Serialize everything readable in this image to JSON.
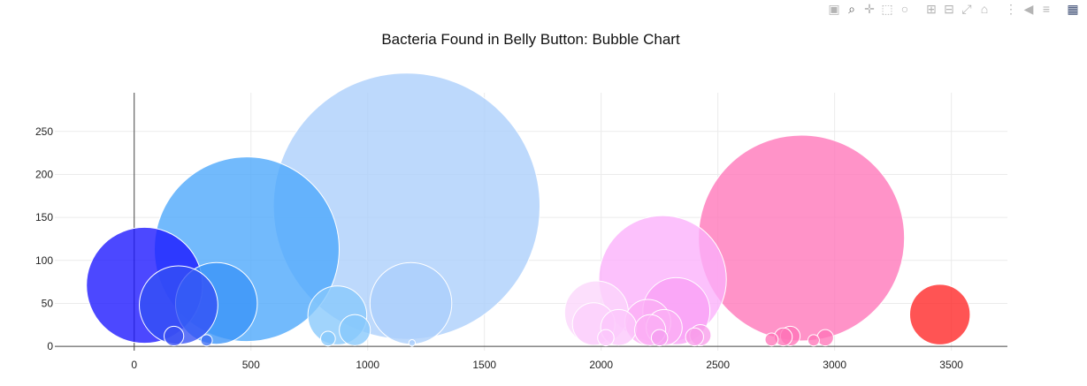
{
  "modebar": {
    "icons": [
      "camera-icon",
      "zoom-icon",
      "pan-icon",
      "box-select-icon",
      "lasso-icon",
      "zoom-in-icon",
      "zoom-out-icon",
      "autoscale-icon",
      "reset-axes-icon",
      "spike-lines-icon",
      "hover-closest-icon",
      "hover-compare-icon",
      "plotly-logo-icon"
    ]
  },
  "chart_data": {
    "type": "scatter",
    "title": "Bacteria Found in Belly Button: Bubble Chart",
    "xlabel": "",
    "ylabel": "",
    "xlim": [
      -340,
      3740
    ],
    "ylim": [
      -5,
      295
    ],
    "xticks": [
      0,
      500,
      1000,
      1500,
      2000,
      2500,
      3000,
      3500
    ],
    "yticks": [
      0,
      50,
      100,
      150,
      200,
      250
    ],
    "grid": true,
    "legend": false,
    "points": [
      {
        "x": 44,
        "y": 71,
        "size": 71,
        "color": "#1a14ff"
      },
      {
        "x": 190,
        "y": 48,
        "size": 48,
        "color": "#3350f5"
      },
      {
        "x": 170,
        "y": 12,
        "size": 12,
        "color": "#3a4ef2"
      },
      {
        "x": 310,
        "y": 7,
        "size": 7,
        "color": "#3a6cf2"
      },
      {
        "x": 352,
        "y": 50,
        "size": 50,
        "color": "#3a93f7"
      },
      {
        "x": 482,
        "y": 113,
        "size": 113,
        "color": "#4aa7fb"
      },
      {
        "x": 870,
        "y": 36,
        "size": 36,
        "color": "#86c8fb"
      },
      {
        "x": 945,
        "y": 19,
        "size": 19,
        "color": "#86c8fb"
      },
      {
        "x": 830,
        "y": 9,
        "size": 9,
        "color": "#86c8fb"
      },
      {
        "x": 1167,
        "y": 163,
        "size": 163,
        "color": "#abcefb"
      },
      {
        "x": 1185,
        "y": 50,
        "size": 50,
        "color": "#abcefb"
      },
      {
        "x": 1190,
        "y": 4,
        "size": 4,
        "color": "#abcefb"
      },
      {
        "x": 1980,
        "y": 39,
        "size": 39,
        "color": "#fbd6fb"
      },
      {
        "x": 1968,
        "y": 26,
        "size": 26,
        "color": "#fbd0fb"
      },
      {
        "x": 2075,
        "y": 22,
        "size": 22,
        "color": "#fbc6fb"
      },
      {
        "x": 2020,
        "y": 10,
        "size": 10,
        "color": "#fbc6fb"
      },
      {
        "x": 2263,
        "y": 78,
        "size": 78,
        "color": "#fbb0fb"
      },
      {
        "x": 2322,
        "y": 41,
        "size": 41,
        "color": "#f9a0f5"
      },
      {
        "x": 2200,
        "y": 28,
        "size": 28,
        "color": "#fbaef5"
      },
      {
        "x": 2270,
        "y": 22,
        "size": 22,
        "color": "#fbaef5"
      },
      {
        "x": 2210,
        "y": 19,
        "size": 19,
        "color": "#fbaef5"
      },
      {
        "x": 2250,
        "y": 10,
        "size": 10,
        "color": "#f59ef0"
      },
      {
        "x": 2400,
        "y": 11,
        "size": 11,
        "color": "#f99cea"
      },
      {
        "x": 2425,
        "y": 13,
        "size": 13,
        "color": "#f99cea"
      },
      {
        "x": 2858,
        "y": 126,
        "size": 126,
        "color": "#ff74b8"
      },
      {
        "x": 2730,
        "y": 8,
        "size": 8,
        "color": "#ff74b8"
      },
      {
        "x": 2780,
        "y": 11,
        "size": 11,
        "color": "#ff74b8"
      },
      {
        "x": 2810,
        "y": 12,
        "size": 12,
        "color": "#ff74b8"
      },
      {
        "x": 2910,
        "y": 7,
        "size": 7,
        "color": "#ff74b8"
      },
      {
        "x": 2960,
        "y": 10,
        "size": 10,
        "color": "#ff74b8"
      },
      {
        "x": 3451,
        "y": 37,
        "size": 37,
        "color": "#ff2424"
      }
    ]
  }
}
